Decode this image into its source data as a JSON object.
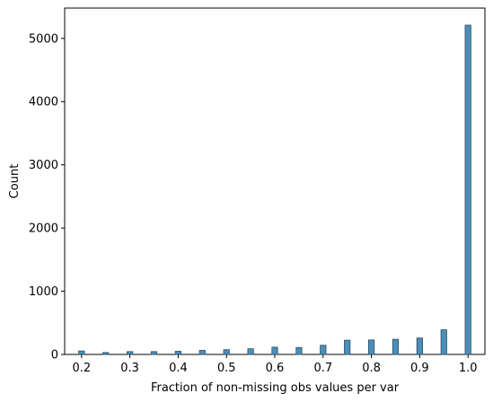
{
  "chart_data": {
    "type": "bar",
    "title": "",
    "xlabel": "Fraction of non-missing obs values per var",
    "ylabel": "Count",
    "xlim": [
      0.165,
      1.035
    ],
    "ylim": [
      0,
      5480
    ],
    "xticks": [
      "0.2",
      "0.3",
      "0.4",
      "0.5",
      "0.6",
      "0.7",
      "0.8",
      "0.9",
      "1.0"
    ],
    "yticks": [
      "0",
      "1000",
      "2000",
      "3000",
      "4000",
      "5000"
    ],
    "grid": false,
    "legend": "none",
    "bar_color": "#4c8eb8",
    "bar_edge_color": "#2f4f66",
    "bars": [
      {
        "x": 0.2,
        "value": 55
      },
      {
        "x": 0.25,
        "value": 30
      },
      {
        "x": 0.3,
        "value": 45
      },
      {
        "x": 0.35,
        "value": 45
      },
      {
        "x": 0.4,
        "value": 50
      },
      {
        "x": 0.45,
        "value": 65
      },
      {
        "x": 0.5,
        "value": 75
      },
      {
        "x": 0.55,
        "value": 90
      },
      {
        "x": 0.6,
        "value": 115
      },
      {
        "x": 0.65,
        "value": 110
      },
      {
        "x": 0.7,
        "value": 145
      },
      {
        "x": 0.75,
        "value": 225
      },
      {
        "x": 0.8,
        "value": 230
      },
      {
        "x": 0.85,
        "value": 240
      },
      {
        "x": 0.9,
        "value": 260
      },
      {
        "x": 0.95,
        "value": 390
      },
      {
        "x": 1.0,
        "value": 5210
      }
    ]
  }
}
